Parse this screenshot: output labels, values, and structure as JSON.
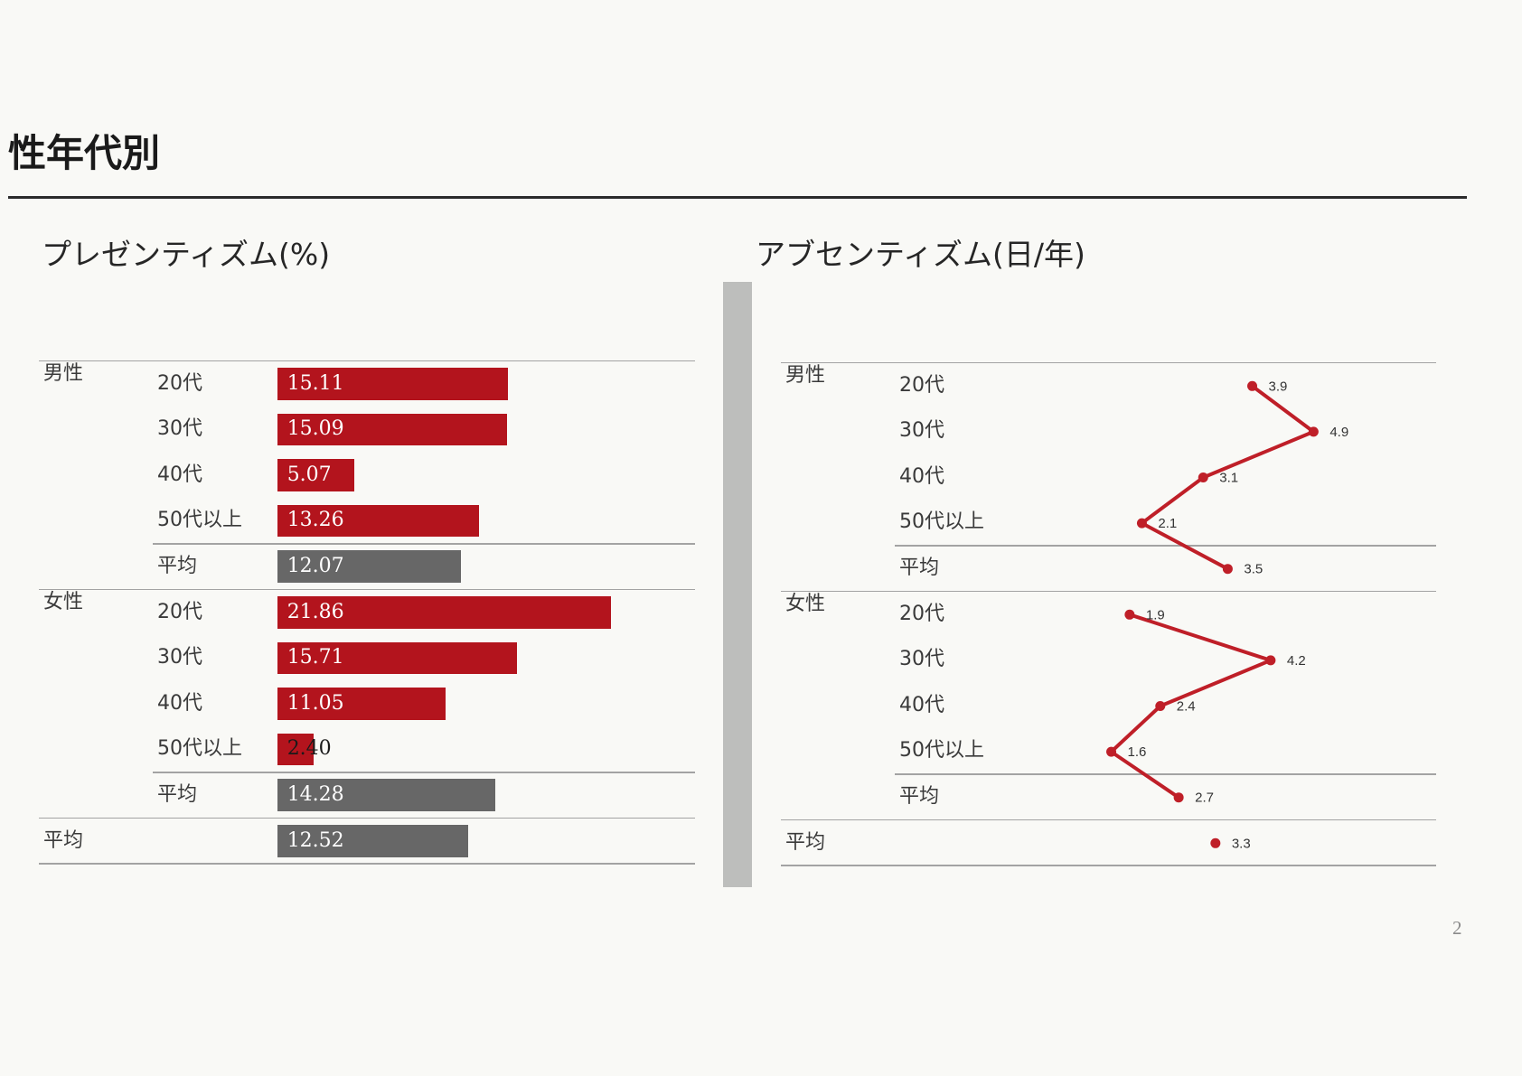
{
  "page": {
    "title": "性年代別",
    "page_number": "2"
  },
  "colors": {
    "presenteeism_bar": "#b3141d",
    "average_bar": "#676767",
    "absenteeism_line": "#bf1f28"
  },
  "chart_data": [
    {
      "type": "bar",
      "title": "プレゼンティズム(%)",
      "xlim": [
        0,
        27.4
      ],
      "groups": [
        {
          "label": "男性",
          "rows": [
            {
              "label": "20代",
              "value": 15.11,
              "color": "#b3141d"
            },
            {
              "label": "30代",
              "value": 15.09,
              "color": "#b3141d"
            },
            {
              "label": "40代",
              "value": 5.07,
              "color": "#b3141d"
            },
            {
              "label": "50代以上",
              "value": 13.26,
              "color": "#b3141d"
            },
            {
              "label": "平均",
              "value": 12.07,
              "color": "#676767"
            }
          ]
        },
        {
          "label": "女性",
          "rows": [
            {
              "label": "20代",
              "value": 21.86,
              "color": "#b3141d"
            },
            {
              "label": "30代",
              "value": 15.71,
              "color": "#b3141d"
            },
            {
              "label": "40代",
              "value": 11.05,
              "color": "#b3141d"
            },
            {
              "label": "50代以上",
              "value": 2.4,
              "color": "#b3141d"
            },
            {
              "label": "平均",
              "value": 14.28,
              "color": "#676767"
            }
          ]
        },
        {
          "label": "平均",
          "rows": [
            {
              "value": 12.52,
              "color": "#676767"
            }
          ]
        }
      ]
    },
    {
      "type": "line",
      "title": "アブセンティズム(日/年)",
      "xlim": [
        0,
        6.9
      ],
      "groups": [
        {
          "label": "男性",
          "rows": [
            {
              "label": "20代",
              "value": 3.9
            },
            {
              "label": "30代",
              "value": 4.9
            },
            {
              "label": "40代",
              "value": 3.1
            },
            {
              "label": "50代以上",
              "value": 2.1
            },
            {
              "label": "平均",
              "value": 3.5
            }
          ]
        },
        {
          "label": "女性",
          "rows": [
            {
              "label": "20代",
              "value": 1.9
            },
            {
              "label": "30代",
              "value": 4.2
            },
            {
              "label": "40代",
              "value": 2.4
            },
            {
              "label": "50代以上",
              "value": 1.6
            },
            {
              "label": "平均",
              "value": 2.7
            }
          ]
        },
        {
          "label": "平均",
          "rows": [
            {
              "value": 3.3
            }
          ]
        }
      ]
    }
  ]
}
